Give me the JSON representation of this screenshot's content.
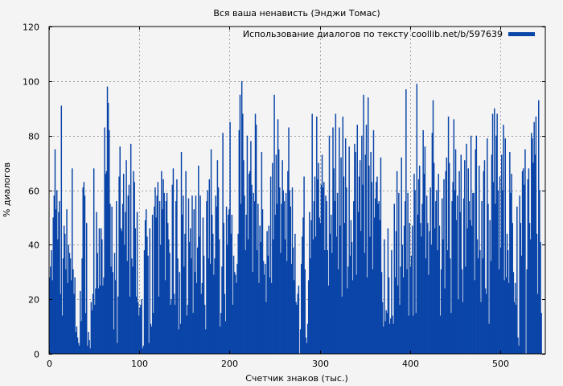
{
  "chart_data": {
    "type": "bar",
    "title": "Вся ваша ненависть (Энджи Томас)",
    "xlabel": "Счетчик знаков (тыс.)",
    "ylabel": "% диалогов",
    "xlim": [
      0,
      550
    ],
    "ylim": [
      0,
      120
    ],
    "xticks": [
      0,
      100,
      200,
      300,
      400,
      500
    ],
    "yticks": [
      0,
      20,
      40,
      60,
      80,
      100,
      120
    ],
    "grid": true,
    "legend_position": "top-right",
    "series": [
      {
        "name": "Использование диалогов по тексту coollib.net/b/597639",
        "color": "#0a45a8",
        "x_step": 1,
        "values": [
          28,
          32,
          38,
          27,
          50,
          58,
          75,
          53,
          60,
          42,
          52,
          56,
          22,
          91,
          14,
          35,
          47,
          44,
          31,
          53,
          26,
          40,
          37,
          35,
          27,
          68,
          31,
          22,
          28,
          8,
          10,
          6,
          4,
          3,
          23,
          12,
          35,
          61,
          63,
          58,
          15,
          48,
          3,
          8,
          5,
          2,
          19,
          16,
          22,
          68,
          18,
          24,
          52,
          37,
          24,
          46,
          25,
          46,
          42,
          25,
          28,
          83,
          66,
          67,
          98,
          92,
          82,
          55,
          32,
          54,
          30,
          9,
          37,
          27,
          56,
          4,
          21,
          65,
          76,
          46,
          45,
          55,
          66,
          40,
          52,
          71,
          34,
          58,
          62,
          21,
          77,
          35,
          32,
          67,
          63,
          46,
          21,
          52,
          19,
          14,
          17,
          18,
          20,
          2,
          3,
          38,
          49,
          53,
          43,
          36,
          4,
          46,
          11,
          10,
          51,
          15,
          54,
          61,
          50,
          58,
          63,
          21,
          56,
          40,
          67,
          53,
          64,
          59,
          27,
          56,
          59,
          48,
          42,
          37,
          18,
          20,
          62,
          68,
          22,
          18,
          56,
          64,
          35,
          9,
          30,
          11,
          74,
          51,
          58,
          32,
          44,
          67,
          14,
          18,
          57,
          41,
          46,
          35,
          58,
          15,
          53,
          30,
          58,
          26,
          39,
          69,
          43,
          58,
          22,
          26,
          50,
          36,
          18,
          9,
          56,
          60,
          35,
          64,
          33,
          75,
          51,
          44,
          29,
          35,
          58,
          54,
          71,
          61,
          42,
          10,
          15,
          32,
          81,
          48,
          22,
          12,
          54,
          40,
          51,
          53,
          85,
          44,
          51,
          18,
          36,
          30,
          29,
          26,
          33,
          44,
          82,
          95,
          55,
          100,
          88,
          71,
          58,
          38,
          51,
          80,
          42,
          66,
          67,
          78,
          62,
          30,
          59,
          56,
          88,
          84,
          38,
          55,
          26,
          47,
          41,
          74,
          53,
          34,
          29,
          33,
          19,
          45,
          36,
          47,
          28,
          65,
          26,
          70,
          42,
          95,
          51,
          73,
          55,
          86,
          75,
          61,
          37,
          55,
          71,
          60,
          56,
          42,
          59,
          34,
          67,
          83,
          60,
          54,
          33,
          61,
          39,
          27,
          44,
          19,
          18,
          22,
          25,
          0,
          9,
          33,
          43,
          50,
          65,
          31,
          6,
          4,
          11,
          27,
          52,
          35,
          49,
          88,
          42,
          56,
          65,
          43,
          87,
          64,
          70,
          50,
          48,
          62,
          73,
          61,
          63,
          38,
          58,
          56,
          38,
          25,
          80,
          44,
          51,
          37,
          83,
          68,
          56,
          88,
          43,
          59,
          31,
          83,
          47,
          72,
          21,
          87,
          65,
          48,
          79,
          61,
          24,
          32,
          76,
          36,
          49,
          41,
          27,
          56,
          77,
          74,
          29,
          84,
          52,
          65,
          71,
          45,
          80,
          62,
          95,
          37,
          73,
          84,
          28,
          94,
          69,
          43,
          74,
          63,
          31,
          82,
          50,
          57,
          63,
          65,
          55,
          56,
          49,
          72,
          30,
          19,
          10,
          42,
          12,
          16,
          15,
          46,
          28,
          11,
          13,
          38,
          14,
          11,
          55,
          28,
          45,
          67,
          25,
          59,
          18,
          32,
          72,
          40,
          28,
          47,
          56,
          97,
          31,
          59,
          14,
          48,
          32,
          36,
          47,
          14,
          66,
          60,
          15,
          99,
          51,
          64,
          69,
          48,
          43,
          55,
          82,
          66,
          76,
          35,
          58,
          48,
          29,
          45,
          61,
          40,
          81,
          93,
          70,
          46,
          56,
          60,
          38,
          66,
          47,
          14,
          31,
          57,
          42,
          64,
          24,
          67,
          72,
          38,
          87,
          70,
          35,
          15,
          56,
          63,
          86,
          60,
          75,
          49,
          58,
          20,
          67,
          52,
          73,
          31,
          19,
          57,
          71,
          32,
          77,
          46,
          68,
          56,
          49,
          80,
          47,
          59,
          59,
          27,
          75,
          80,
          42,
          35,
          69,
          38,
          19,
          56,
          35,
          67,
          71,
          24,
          22,
          79,
          55,
          11,
          49,
          34,
          73,
          88,
          63,
          90,
          55,
          80,
          88,
          60,
          31,
          65,
          39,
          73,
          60,
          84,
          27,
          79,
          28,
          44,
          38,
          26,
          74,
          59,
          66,
          48,
          30,
          19,
          26,
          18,
          54,
          6,
          3,
          58,
          48,
          36,
          67,
          68,
          62,
          75,
          0,
          31,
          64,
          68,
          48,
          42,
          81,
          79,
          70,
          85,
          73,
          87,
          44,
          22,
          93,
          60,
          41,
          15
        ]
      }
    ]
  }
}
